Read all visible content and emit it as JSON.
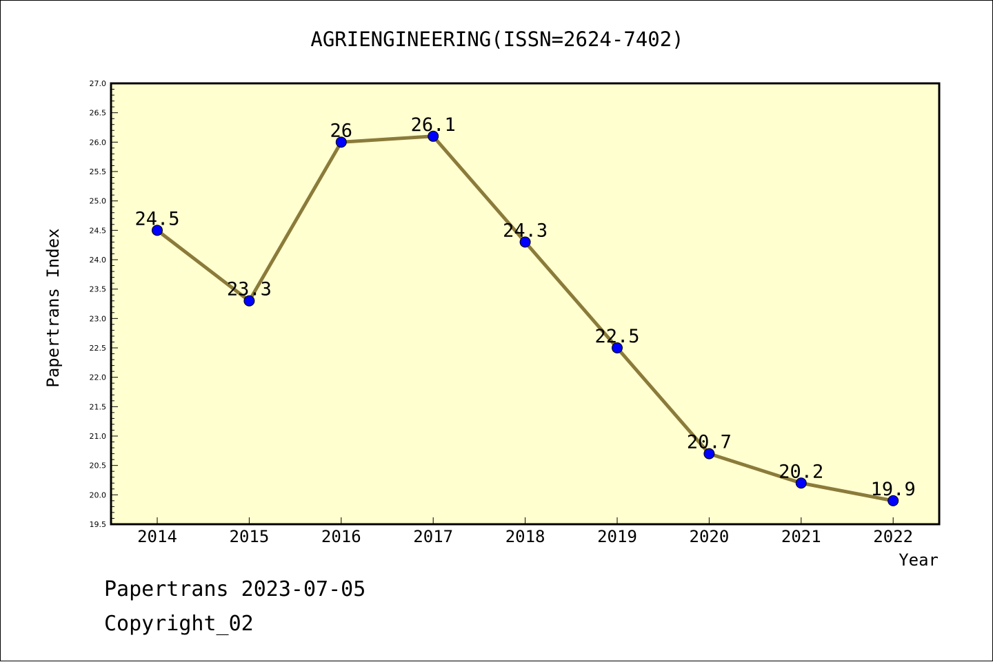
{
  "chart_data": {
    "type": "line",
    "title": "AGRIENGINEERING(ISSN=2624-7402)",
    "xlabel": "Year",
    "ylabel": "Papertrans Index",
    "categories": [
      "2014",
      "2015",
      "2016",
      "2017",
      "2018",
      "2019",
      "2020",
      "2021",
      "2022"
    ],
    "series": [
      {
        "values": [
          24.5,
          23.3,
          26.0,
          26.1,
          24.3,
          22.5,
          20.7,
          20.2,
          19.9
        ],
        "labels": [
          "24.5",
          "23.3",
          "26",
          "26.1",
          "24.3",
          "22.5",
          "20.7",
          "20.2",
          "19.9"
        ],
        "line_color": "#8b7b3a",
        "marker_color": "#0000ff"
      }
    ],
    "ylim": [
      19.5,
      27.0
    ],
    "yticks": [
      "19.5",
      "20.0",
      "20.5",
      "21.0",
      "21.5",
      "22.0",
      "22.5",
      "23.0",
      "23.5",
      "24.0",
      "24.5",
      "25.0",
      "25.5",
      "26.0",
      "26.5",
      "27.0"
    ],
    "ytick_step": 0.5,
    "yminor_step": 0.1,
    "plot_background": "#ffffd0",
    "grid": false,
    "legend": "none"
  },
  "footer": {
    "line1": "Papertrans 2023-07-05",
    "line2": "Copyright_02"
  }
}
